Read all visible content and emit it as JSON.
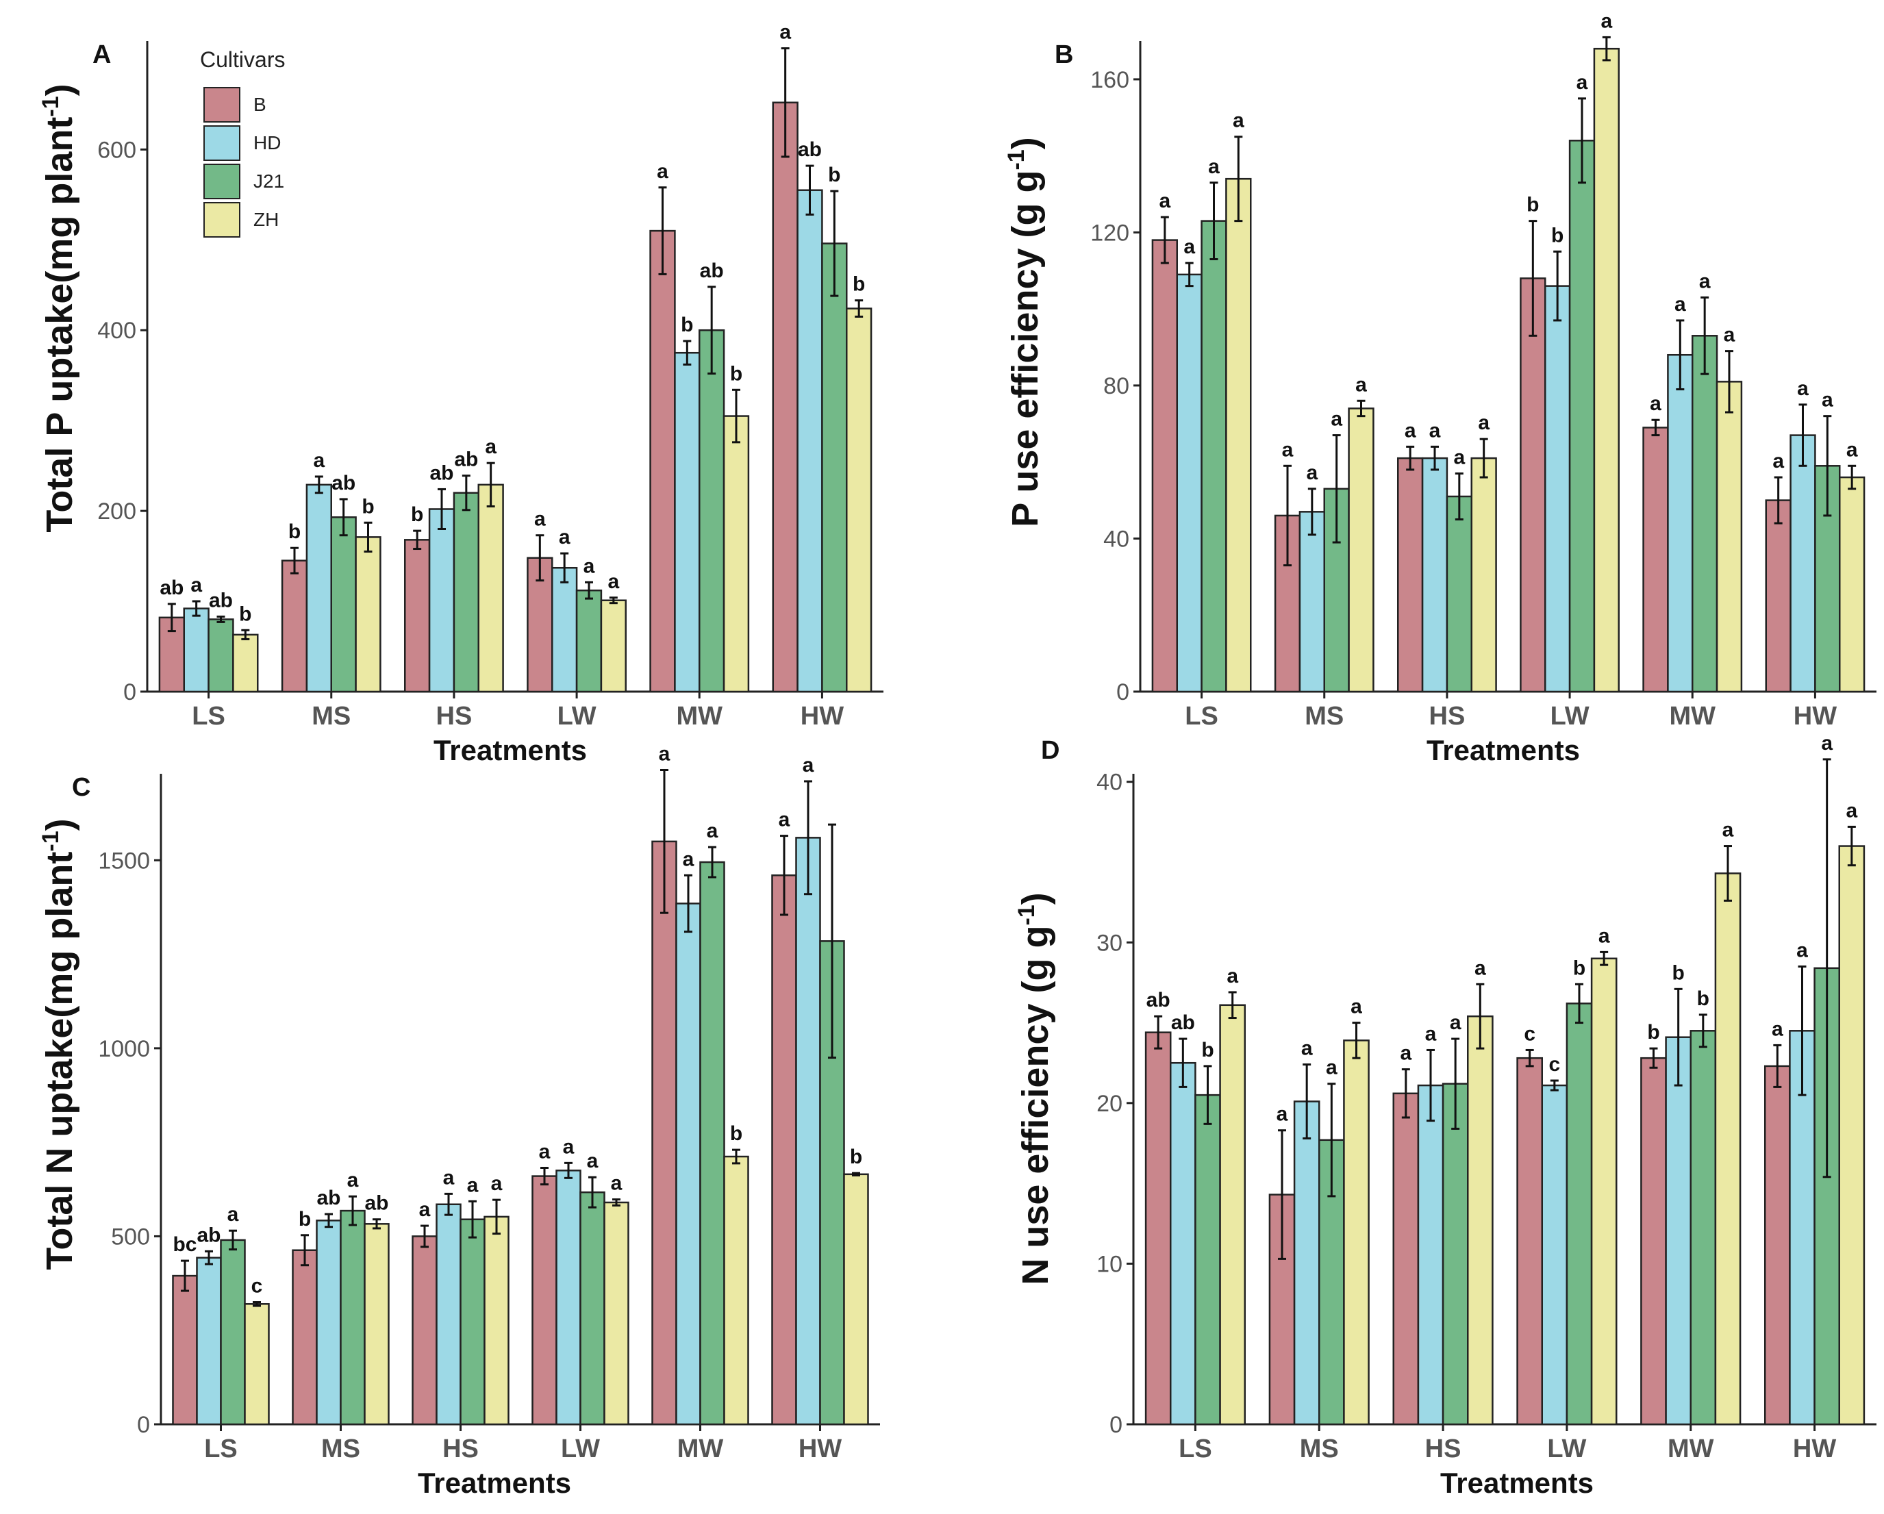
{
  "colors": {
    "B": "#c9868c",
    "HD": "#9dd9e6",
    "J21": "#73b988",
    "ZH": "#ebe9a4"
  },
  "legend": {
    "title": "Cultivars",
    "items": [
      "B",
      "HD",
      "J21",
      "ZH"
    ]
  },
  "chart_data": [
    {
      "panel": "A",
      "type": "bar",
      "title": "",
      "xlabel": "Treatments",
      "ylabel": "Total P uptake(mg plant",
      "ylabel_sup": "-1",
      "ylabel_close": ")",
      "ylim": [
        0,
        720
      ],
      "yticks": [
        0,
        200,
        400,
        600
      ],
      "ytick_labels": [
        "0",
        "200",
        "400",
        "600"
      ],
      "categories": [
        "LS",
        "MS",
        "HS",
        "LW",
        "MW",
        "HW"
      ],
      "series": [
        {
          "name": "B",
          "values": [
            82,
            145,
            168,
            148,
            510,
            652
          ],
          "errors": [
            15,
            14,
            10,
            25,
            48,
            60
          ],
          "letters": [
            "ab",
            "b",
            "b",
            "a",
            "a",
            "a"
          ]
        },
        {
          "name": "HD",
          "values": [
            92,
            229,
            202,
            137,
            375,
            555
          ],
          "errors": [
            8,
            9,
            22,
            16,
            13,
            27
          ],
          "letters": [
            "a",
            "a",
            "ab",
            "a",
            "b",
            "ab"
          ]
        },
        {
          "name": "J21",
          "values": [
            80,
            193,
            220,
            112,
            400,
            496
          ],
          "errors": [
            3,
            20,
            19,
            9,
            48,
            58
          ],
          "letters": [
            "ab",
            "ab",
            "ab",
            "a",
            "ab",
            "b"
          ]
        },
        {
          "name": "ZH",
          "values": [
            63,
            171,
            229,
            101,
            305,
            424
          ],
          "errors": [
            5,
            16,
            24,
            3,
            29,
            9
          ],
          "letters": [
            "b",
            "b",
            "a",
            "a",
            "b",
            "b"
          ]
        }
      ],
      "show_legend": true
    },
    {
      "panel": "B",
      "type": "bar",
      "title": "",
      "xlabel": "Treatments",
      "ylabel": "P use efficiency (g g",
      "ylabel_sup": "-1",
      "ylabel_close": ")",
      "ylim": [
        0,
        170
      ],
      "yticks": [
        0,
        40,
        80,
        120,
        160
      ],
      "ytick_labels": [
        "0",
        "40",
        "80",
        "120",
        "160"
      ],
      "categories": [
        "LS",
        "MS",
        "HS",
        "LW",
        "MW",
        "HW"
      ],
      "series": [
        {
          "name": "B",
          "values": [
            118,
            46,
            61,
            108,
            69,
            50
          ],
          "errors": [
            6,
            13,
            3,
            15,
            2,
            6
          ],
          "letters": [
            "a",
            "a",
            "a",
            "b",
            "a",
            "a"
          ]
        },
        {
          "name": "HD",
          "values": [
            109,
            47,
            61,
            106,
            88,
            67
          ],
          "errors": [
            3,
            6,
            3,
            9,
            9,
            8
          ],
          "letters": [
            "a",
            "a",
            "a",
            "b",
            "a",
            "a"
          ]
        },
        {
          "name": "J21",
          "values": [
            123,
            53,
            51,
            144,
            93,
            59
          ],
          "errors": [
            10,
            14,
            6,
            11,
            10,
            13
          ],
          "letters": [
            "a",
            "a",
            "a",
            "a",
            "a",
            "a"
          ]
        },
        {
          "name": "ZH",
          "values": [
            134,
            74,
            61,
            168,
            81,
            56
          ],
          "errors": [
            11,
            2,
            5,
            3,
            8,
            3
          ],
          "letters": [
            "a",
            "a",
            "a",
            "a",
            "a",
            "a"
          ]
        }
      ],
      "show_legend": false
    },
    {
      "panel": "C",
      "type": "bar",
      "title": "",
      "xlabel": "Treatments",
      "ylabel": "Total N uptake(mg plant",
      "ylabel_sup": "-1",
      "ylabel_close": ")",
      "ylim": [
        0,
        1730
      ],
      "yticks": [
        0,
        500,
        1000,
        1500
      ],
      "ytick_labels": [
        "0",
        "500",
        "1000",
        "1500"
      ],
      "categories": [
        "LS",
        "MS",
        "HS",
        "LW",
        "MW",
        "HW"
      ],
      "series": [
        {
          "name": "B",
          "values": [
            395,
            463,
            500,
            660,
            1550,
            1460
          ],
          "errors": [
            40,
            40,
            28,
            22,
            190,
            105
          ],
          "letters": [
            "bc",
            "b",
            "a",
            "a",
            "a",
            "a"
          ]
        },
        {
          "name": "HD",
          "values": [
            443,
            542,
            585,
            675,
            1385,
            1560
          ],
          "errors": [
            17,
            17,
            28,
            20,
            75,
            150
          ],
          "letters": [
            "ab",
            "ab",
            "a",
            "a",
            "a",
            "a"
          ]
        },
        {
          "name": "J21",
          "values": [
            490,
            568,
            545,
            617,
            1495,
            1285
          ],
          "errors": [
            25,
            38,
            48,
            40,
            40,
            310
          ],
          "letters": [
            "a",
            "a",
            "a",
            "a",
            "a",
            ""
          ]
        },
        {
          "name": "ZH",
          "values": [
            320,
            533,
            552,
            590,
            712,
            665
          ],
          "errors": [
            5,
            12,
            45,
            8,
            18,
            3
          ],
          "letters": [
            "c",
            "ab",
            "a",
            "a",
            "b",
            "b"
          ]
        }
      ],
      "show_legend": false
    },
    {
      "panel": "D",
      "type": "bar",
      "title": "",
      "xlabel": "Treatments",
      "ylabel": "N use efficiency (g g",
      "ylabel_sup": "-1",
      "ylabel_close": ")",
      "ylim": [
        0,
        40.5
      ],
      "yticks": [
        0,
        10,
        20,
        30,
        40
      ],
      "ytick_labels": [
        "0",
        "10",
        "20",
        "30",
        "40"
      ],
      "categories": [
        "LS",
        "MS",
        "HS",
        "LW",
        "MW",
        "HW"
      ],
      "series": [
        {
          "name": "B",
          "values": [
            24.4,
            14.3,
            20.6,
            22.8,
            22.8,
            22.3
          ],
          "errors": [
            1.0,
            4.0,
            1.5,
            0.5,
            0.6,
            1.3
          ],
          "letters": [
            "ab",
            "a",
            "a",
            "c",
            "b",
            "a"
          ]
        },
        {
          "name": "HD",
          "values": [
            22.5,
            20.1,
            21.1,
            21.1,
            24.1,
            24.5
          ],
          "errors": [
            1.5,
            2.3,
            2.2,
            0.3,
            3.0,
            4.0
          ],
          "letters": [
            "ab",
            "a",
            "a",
            "c",
            "b",
            "a"
          ]
        },
        {
          "name": "J21",
          "values": [
            20.5,
            17.7,
            21.2,
            26.2,
            24.5,
            28.4
          ],
          "errors": [
            1.8,
            3.5,
            2.8,
            1.2,
            1.0,
            13.0
          ],
          "letters": [
            "b",
            "a",
            "a",
            "b",
            "b",
            "a"
          ]
        },
        {
          "name": "ZH",
          "values": [
            26.1,
            23.9,
            25.4,
            29.0,
            34.3,
            36.0
          ],
          "errors": [
            0.8,
            1.1,
            2.0,
            0.4,
            1.7,
            1.2
          ],
          "letters": [
            "a",
            "a",
            "a",
            "a",
            "a",
            "a"
          ]
        }
      ],
      "show_legend": false
    }
  ]
}
